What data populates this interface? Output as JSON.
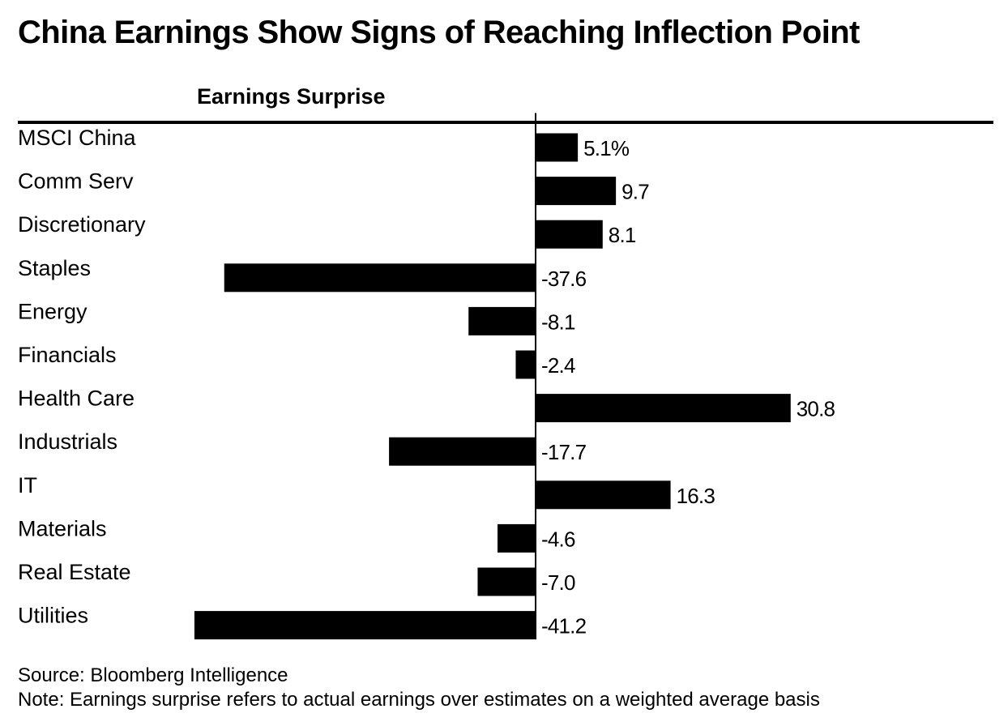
{
  "title": "China Earnings Show Signs of Reaching Inflection Point",
  "column_header": "Earnings Surprise",
  "footer": {
    "source": "Source: Bloomberg Intelligence",
    "note": "Note: Earnings surprise refers to actual earnings over estimates on a weighted average basis"
  },
  "colors": {
    "bar": "#000000",
    "text": "#000000",
    "background": "#ffffff"
  },
  "chart_data": {
    "type": "bar",
    "orientation": "horizontal",
    "title": "China Earnings Show Signs of Reaching Inflection Point",
    "xlabel": "Earnings Surprise",
    "ylabel": "",
    "grid": false,
    "categories": [
      "MSCI China",
      "Comm Serv",
      "Discretionary",
      "Staples",
      "Energy",
      "Financials",
      "Health Care",
      "Industrials",
      "IT",
      "Materials",
      "Real Estate",
      "Utilities"
    ],
    "values": [
      5.1,
      9.7,
      8.1,
      -37.6,
      -8.1,
      -2.4,
      30.8,
      -17.7,
      16.3,
      -4.6,
      -7.0,
      -41.2
    ],
    "value_labels": [
      "5.1%",
      "9.7",
      "8.1",
      "-37.6",
      "-8.1",
      "-2.4",
      "30.8",
      "-17.7",
      "16.3",
      "-4.6",
      "-7.0",
      "-41.2"
    ]
  }
}
